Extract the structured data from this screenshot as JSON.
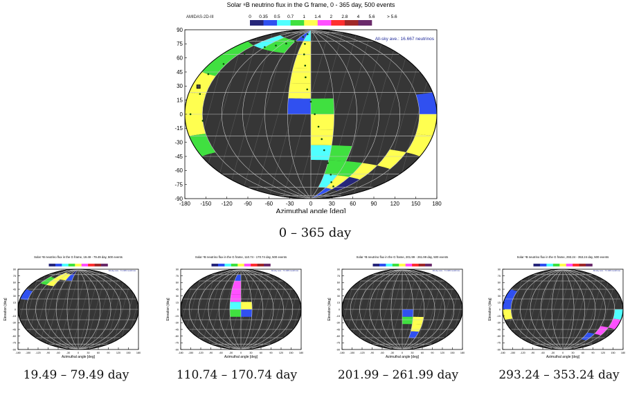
{
  "colors": {
    "sky_fill": "#363636",
    "grid": "#c8c8c8",
    "pattern": "#5a5a5a",
    "bin_colors": [
      "#26267a",
      "#3050f0",
      "#50ffff",
      "#40e040",
      "#ffff50",
      "#ff50ff",
      "#ff3030",
      "#a02828",
      "#6a2a6a"
    ],
    "note_color": "#1f2a9a",
    "track_dot": "#0b4a0b"
  },
  "legend": {
    "labels": [
      "0",
      "0.35",
      "0.5",
      "0.7",
      "1",
      "1.4",
      "2",
      "2.8",
      "4",
      "5.6",
      "> 5.6"
    ],
    "source": "AMIDAS-2D-III"
  },
  "main_panel": {
    "title": "Solar ⁸B neutrino flux in the G frame, 0 - 365 day, 500 events",
    "note": "All-sky ave.: 16.667 neutrinos",
    "caption": "0 – 365 day"
  },
  "small_panels": [
    {
      "title": "Solar ⁸B neutrino flux in the G frame, 19.49 - 79.49 day, 500 events",
      "note": "All-sky ave.: 71.429 neutrinos",
      "caption": "19.49 – 79.49 day"
    },
    {
      "title": "Solar ⁸B neutrino flux in the G frame, 110.74 - 170.74 day, 500 events",
      "note": "All-sky ave.: 71.429 neutrinos",
      "caption": "110.74 – 170.74 day"
    },
    {
      "title": "Solar ⁸B neutrino flux in the G frame, 201.99 - 261.99 day, 500 events",
      "note": "All-sky ave.: 71.429 neutrinos",
      "caption": "201.99 – 261.99 day"
    },
    {
      "title": "Solar ⁸B neutrino flux in the G frame, 293.24 - 353.24 day, 500 events",
      "note": "All-sky ave.: 71.429 neutrinos",
      "caption": "293.24 – 353.24 day"
    }
  ],
  "axes": {
    "xlabel": "Azimuthal angle [deg]",
    "ylabel": "Elevation [deg]",
    "xticks": [
      "-180",
      "-150",
      "-120",
      "-90",
      "-60",
      "-30",
      "0",
      "30",
      "60",
      "90",
      "120",
      "150",
      "180"
    ],
    "yticks": [
      "90",
      "75",
      "60",
      "45",
      "30",
      "15",
      "0",
      "-15",
      "-30",
      "-45",
      "-60",
      "-75",
      "-90"
    ]
  },
  "chart_data": [
    {
      "type": "heatmap",
      "projection": "Hammer-Aitoff",
      "title": "Solar ⁸B neutrino flux in the G frame, 0 - 365 day, 500 events",
      "xlabel": "Azimuthal angle [deg]",
      "ylabel": "Elevation [deg]",
      "xlim": [
        -180,
        180
      ],
      "ylim": [
        -90,
        90
      ],
      "bins": [
        [
          -180,
          -150,
          30,
          60,
          3
        ],
        [
          -180,
          -150,
          15,
          30,
          4
        ],
        [
          -180,
          -150,
          -15,
          15,
          4
        ],
        [
          -180,
          -150,
          -30,
          -15,
          3
        ],
        [
          -150,
          -120,
          60,
          75,
          2
        ],
        [
          -120,
          -90,
          60,
          75,
          3
        ],
        [
          -90,
          -60,
          60,
          75,
          3
        ],
        [
          -60,
          -30,
          75,
          90,
          1
        ],
        [
          -30,
          0,
          75,
          90,
          2
        ],
        [
          -30,
          0,
          60,
          75,
          4
        ],
        [
          -30,
          0,
          45,
          60,
          4
        ],
        [
          -30,
          0,
          30,
          45,
          4
        ],
        [
          -30,
          0,
          15,
          30,
          4
        ],
        [
          -30,
          0,
          0,
          15,
          1
        ],
        [
          0,
          30,
          0,
          15,
          3
        ],
        [
          0,
          30,
          -15,
          0,
          4
        ],
        [
          0,
          30,
          -30,
          -15,
          4
        ],
        [
          0,
          30,
          -45,
          -30,
          2
        ],
        [
          30,
          60,
          -45,
          -30,
          3
        ],
        [
          30,
          60,
          -60,
          -45,
          3
        ],
        [
          60,
          90,
          -60,
          -45,
          3
        ],
        [
          90,
          120,
          -60,
          -45,
          4
        ],
        [
          120,
          150,
          -45,
          -30,
          4
        ],
        [
          150,
          180,
          -30,
          -15,
          4
        ],
        [
          150,
          180,
          -15,
          0,
          4
        ],
        [
          150,
          180,
          0,
          15,
          1
        ],
        [
          30,
          60,
          -75,
          -60,
          2
        ],
        [
          60,
          90,
          -75,
          -60,
          4
        ],
        [
          90,
          120,
          -75,
          -60,
          0
        ],
        [
          60,
          90,
          -90,
          -75,
          1
        ]
      ],
      "track": [
        [
          -165,
          30
        ],
        [
          -160,
          15
        ],
        [
          -170,
          0
        ],
        [
          -150,
          -5
        ],
        [
          -155,
          40
        ],
        [
          -140,
          52
        ],
        [
          -120,
          62
        ],
        [
          -100,
          66
        ],
        [
          -80,
          70
        ],
        [
          -60,
          74
        ],
        [
          -45,
          80
        ],
        [
          -30,
          84
        ],
        [
          -20,
          72
        ],
        [
          -15,
          60
        ],
        [
          -10,
          48
        ],
        [
          -8,
          36
        ],
        [
          -5,
          24
        ],
        [
          0,
          12
        ],
        [
          5,
          0
        ],
        [
          10,
          -12
        ],
        [
          15,
          -24
        ],
        [
          20,
          -35
        ],
        [
          30,
          -48
        ],
        [
          45,
          -60
        ],
        [
          60,
          -68
        ],
        [
          80,
          -72
        ]
      ],
      "marker": [
        -168,
        20
      ]
    },
    {
      "type": "heatmap",
      "title": "Solar ⁸B neutrino flux in the G frame, 19.49 - 79.49 day, 500 events",
      "xlim": [
        -180,
        180
      ],
      "ylim": [
        -90,
        90
      ],
      "bins": [
        [
          -180,
          -150,
          15,
          30,
          1
        ],
        [
          -150,
          -120,
          45,
          60,
          3
        ],
        [
          -120,
          -90,
          45,
          60,
          4
        ],
        [
          -120,
          -90,
          60,
          75,
          4
        ],
        [
          -90,
          -60,
          60,
          75,
          4
        ],
        [
          -60,
          -30,
          60,
          75,
          1
        ],
        [
          -60,
          -30,
          75,
          90,
          0
        ]
      ]
    },
    {
      "type": "heatmap",
      "title": "Solar ⁸B neutrino flux in the G frame, 110.74 - 170.74 day, 500 events",
      "xlim": [
        -180,
        180
      ],
      "ylim": [
        -90,
        90
      ],
      "bins": [
        [
          -30,
          0,
          60,
          75,
          1
        ],
        [
          -30,
          0,
          30,
          60,
          5
        ],
        [
          -30,
          0,
          15,
          30,
          5
        ],
        [
          -30,
          0,
          0,
          15,
          2
        ],
        [
          0,
          30,
          0,
          15,
          4
        ],
        [
          -30,
          0,
          -15,
          0,
          3
        ],
        [
          0,
          30,
          -15,
          0,
          1
        ]
      ]
    },
    {
      "type": "heatmap",
      "title": "Solar ⁸B neutrino flux in the G frame, 201.99 - 261.99 day, 500 events",
      "xlim": [
        -180,
        180
      ],
      "ylim": [
        -90,
        90
      ],
      "bins": [
        [
          0,
          30,
          -15,
          0,
          1
        ],
        [
          0,
          30,
          -30,
          -15,
          3
        ],
        [
          30,
          60,
          -30,
          -15,
          4
        ],
        [
          30,
          60,
          -45,
          -30,
          4
        ],
        [
          30,
          60,
          -60,
          -45,
          1
        ]
      ]
    },
    {
      "type": "heatmap",
      "title": "Solar ⁸B neutrino flux in the G frame, 293.24 - 353.24 day, 500 events",
      "xlim": [
        -180,
        180
      ],
      "ylim": [
        -90,
        90
      ],
      "bins": [
        [
          -180,
          -150,
          0,
          30,
          1
        ],
        [
          -180,
          -150,
          -15,
          0,
          4
        ],
        [
          150,
          180,
          -15,
          0,
          2
        ],
        [
          150,
          180,
          -30,
          -15,
          5
        ],
        [
          120,
          150,
          -45,
          -30,
          5
        ],
        [
          90,
          120,
          -60,
          -45,
          1
        ]
      ]
    }
  ]
}
